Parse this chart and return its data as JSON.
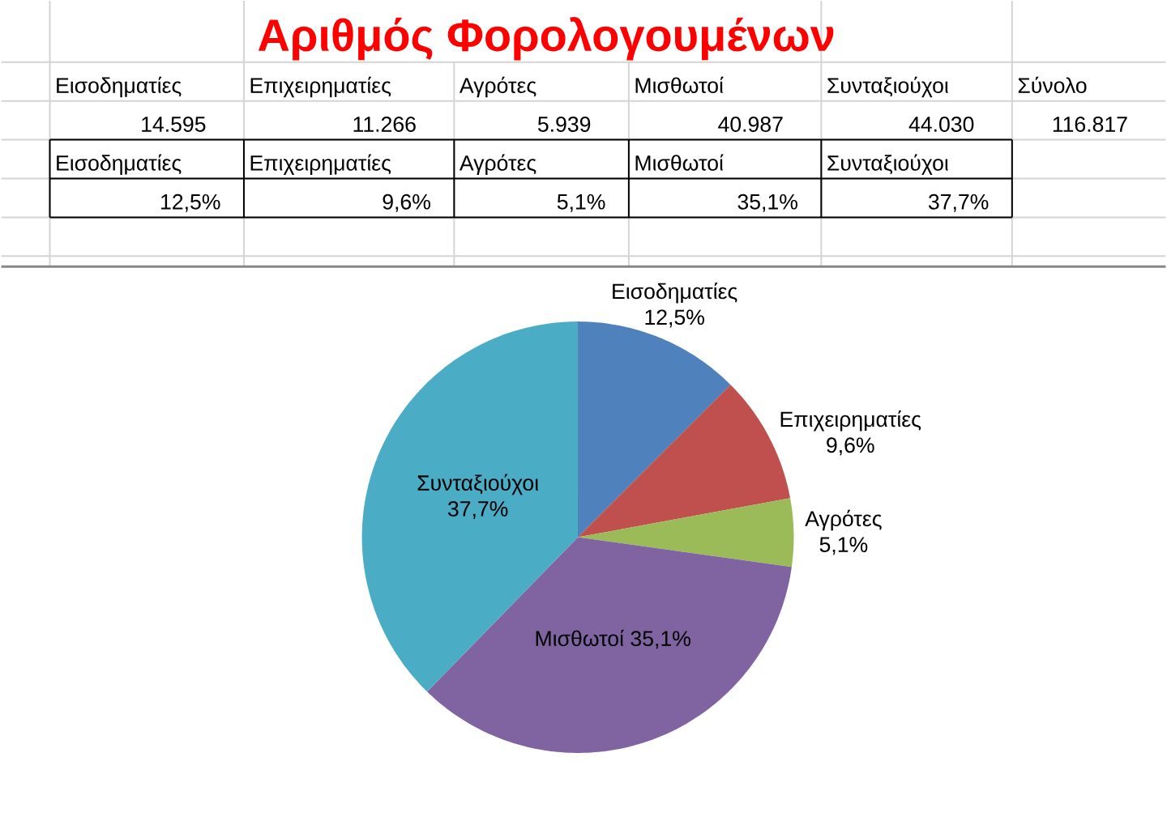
{
  "chart_data": [
    {
      "type": "other",
      "title": "Αριθμός Φορολογουμένων",
      "categories": [
        "Εισοδηματίες",
        "Επιχειρηματίες",
        "Αγρότες",
        "Μισθωτοί",
        "Συνταξιούχοι",
        "Σύνολο"
      ],
      "values": [
        14595,
        11266,
        5939,
        40987,
        44030,
        116817
      ],
      "value_labels": [
        "14.595",
        "11.266",
        "5.939",
        "40.987",
        "44.030",
        "116.817"
      ]
    },
    {
      "type": "other",
      "categories": [
        "Εισοδηματίες",
        "Επιχειρηματίες",
        "Αγρότες",
        "Μισθωτοί",
        "Συνταξιούχοι"
      ],
      "values": [
        12.5,
        9.6,
        5.1,
        35.1,
        37.7
      ],
      "value_labels": [
        "12,5%",
        "9,6%",
        "5,1%",
        "35,1%",
        "37,7%"
      ]
    },
    {
      "type": "pie",
      "categories": [
        "Εισοδηματίες",
        "Επιχειρηματίες",
        "Αγρότες",
        "Μισθωτοί",
        "Συνταξιούχοι"
      ],
      "values": [
        12.5,
        9.6,
        5.1,
        35.1,
        37.7
      ],
      "colors": [
        "#4f81bd",
        "#c0504d",
        "#9bbb59",
        "#8064a2",
        "#4bacc6"
      ],
      "value_labels": [
        "12,5%",
        "9,6%",
        "5,1%",
        "35,1%",
        "37,7%"
      ]
    }
  ]
}
